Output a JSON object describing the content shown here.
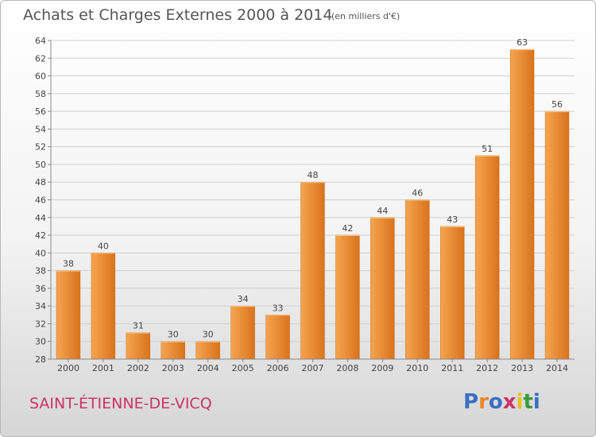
{
  "header": {
    "title": "Achats et Charges Externes 2000 à 2014",
    "unit": "(en milliers d'€)"
  },
  "footer": {
    "commune": "SAINT-ÉTIENNE-DE-VICQ",
    "logo_text": "Proxiti",
    "logo_colors": [
      "#3a6fc4",
      "#e8872a",
      "#3a6fc4",
      "#cc3366",
      "#e8c21a",
      "#3a9a3a",
      "#3a6fc4"
    ]
  },
  "colors": {
    "bar_light": "#f6a450",
    "bar_dark": "#d9731c",
    "grid": "#d0d0d0",
    "axis": "#888888"
  },
  "chart_data": {
    "type": "bar",
    "title": "Achats et Charges Externes 2000 à 2014",
    "subtitle": "(en milliers d'€)",
    "categories": [
      "2000",
      "2001",
      "2002",
      "2003",
      "2004",
      "2005",
      "2006",
      "2007",
      "2008",
      "2009",
      "2010",
      "2011",
      "2012",
      "2013",
      "2014"
    ],
    "values": [
      38,
      40,
      31,
      30,
      30,
      34,
      33,
      48,
      42,
      44,
      46,
      43,
      51,
      63,
      56
    ],
    "ylim": [
      28,
      64
    ],
    "yticks": [
      28,
      30,
      32,
      34,
      36,
      38,
      40,
      42,
      44,
      46,
      48,
      50,
      52,
      54,
      56,
      58,
      60,
      62,
      64
    ],
    "grid": true,
    "data_labels": true
  }
}
